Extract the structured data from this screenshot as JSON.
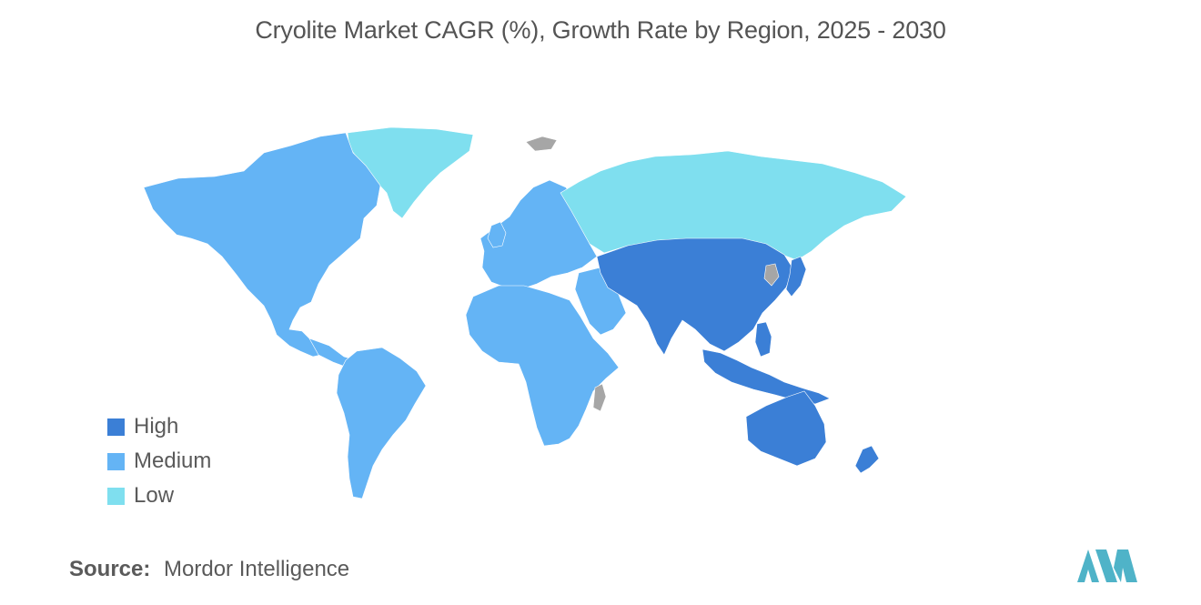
{
  "title": "Cryolite Market CAGR (%), Growth Rate by Region, 2025 - 2030",
  "legend": {
    "items": [
      {
        "label": "High",
        "color": "#3b7fd6"
      },
      {
        "label": "Medium",
        "color": "#64b4f5"
      },
      {
        "label": "Low",
        "color": "#7fdfef"
      }
    ]
  },
  "map": {
    "no_data_color": "#a6a6a6",
    "regions": [
      {
        "name": "North America",
        "category": "Medium"
      },
      {
        "name": "South America",
        "category": "Medium"
      },
      {
        "name": "Europe",
        "category": "Medium"
      },
      {
        "name": "Middle East and Africa",
        "category": "Medium"
      },
      {
        "name": "Asia-Pacific",
        "category": "High"
      },
      {
        "name": "Russia",
        "category": "Low"
      },
      {
        "name": "Greenland",
        "category": "Low"
      }
    ]
  },
  "source": {
    "label": "Source:",
    "value": "Mordor Intelligence"
  },
  "logo": {
    "icon": "mordor-intelligence-logo-icon",
    "color": "#4fb3c8"
  }
}
